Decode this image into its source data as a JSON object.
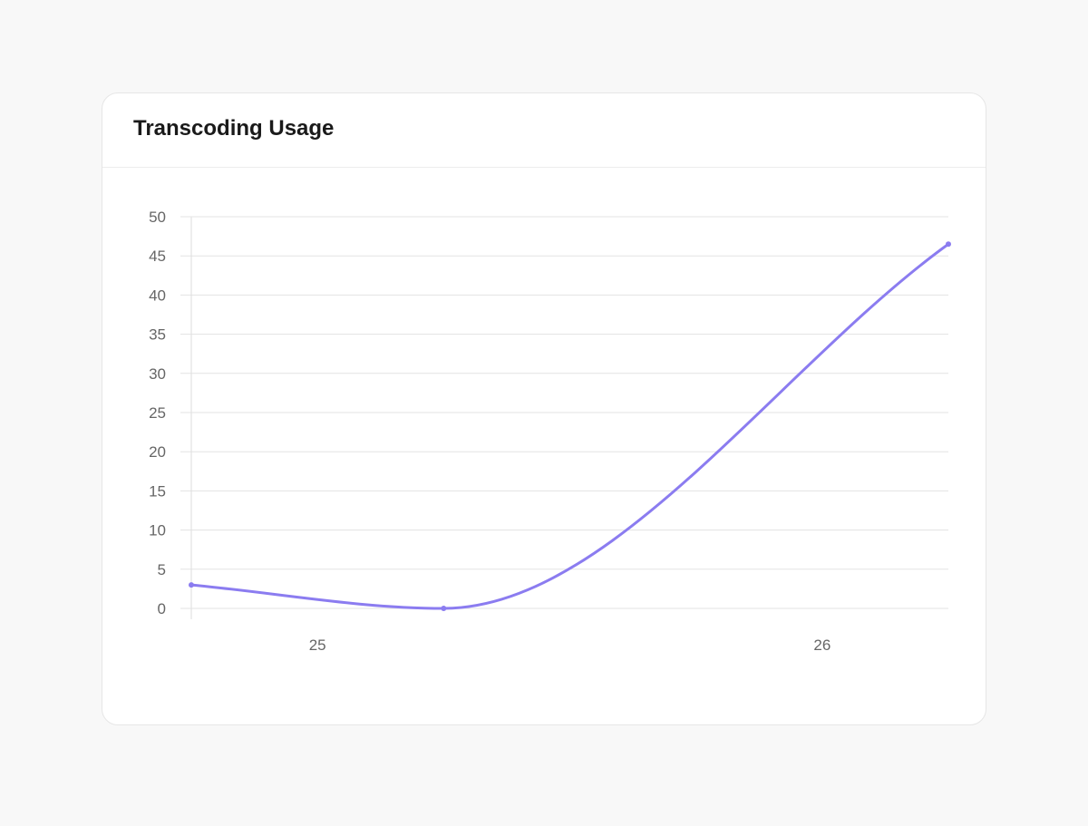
{
  "card": {
    "title": "Transcoding Usage"
  },
  "chart_data": {
    "type": "line",
    "title": "Transcoding Usage",
    "xlabel": "",
    "ylabel": "",
    "x": [
      24.75,
      25.25,
      26.25
    ],
    "x_ticks": [
      25,
      26
    ],
    "xlim": [
      24.75,
      26.25
    ],
    "ylim": [
      0,
      50
    ],
    "y_ticks": [
      0,
      5,
      10,
      15,
      20,
      25,
      30,
      35,
      40,
      45,
      50
    ],
    "series": [
      {
        "name": "",
        "values": [
          3,
          0,
          46.5
        ],
        "color": "#8b7cf0"
      }
    ],
    "grid": true,
    "legend": "none"
  }
}
